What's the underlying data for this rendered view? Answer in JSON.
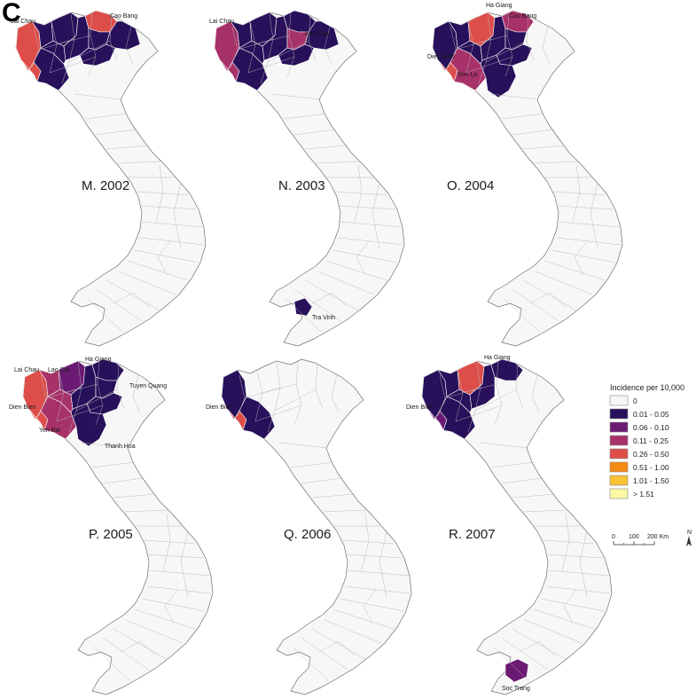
{
  "figure_letter": "C",
  "colors": {
    "c0": "#f7f7f7",
    "c1": "#28105a",
    "c2": "#6b1a73",
    "c3": "#a73269",
    "c4": "#dd4e4a",
    "c5": "#f48a16",
    "c6": "#f9c334",
    "c7": "#fbf7a4"
  },
  "legend": {
    "title": "Incidence per 10,000",
    "items": [
      {
        "label": "0",
        "color_key": "c0"
      },
      {
        "label": "0.01 - 0.05",
        "color_key": "c1"
      },
      {
        "label": "0.06 - 0.10",
        "color_key": "c2"
      },
      {
        "label": "0.11 - 0.25",
        "color_key": "c3"
      },
      {
        "label": "0.26 - 0.50",
        "color_key": "c4"
      },
      {
        "label": "0.51 - 1.00",
        "color_key": "c5"
      },
      {
        "label": "1.01 - 1.50",
        "color_key": "c6"
      },
      {
        "label": "> 1.51",
        "color_key": "c7"
      }
    ]
  },
  "scale_bar": {
    "ticks": [
      "0",
      "100",
      "200 Km"
    ],
    "north_label": "N"
  },
  "panels": [
    {
      "title": "M. 2002",
      "labels": [
        "Lai Chau",
        "Cao Bang"
      ]
    },
    {
      "title": "N. 2003",
      "labels": [
        "Lai Chau",
        "Bac Kan",
        "Tra Vinh"
      ]
    },
    {
      "title": "O. 2004",
      "labels": [
        "Ha Giang",
        "Cao Bang",
        "Dien Bien",
        "Son La"
      ]
    },
    {
      "title": "P. 2005",
      "labels": [
        "Lai Chau",
        "Lao Cai",
        "Ha Giang",
        "Tuyen Quang",
        "Dien Bien",
        "Yen Bai",
        "Thanh Hoa"
      ]
    },
    {
      "title": "Q. 2006",
      "labels": [
        "Dien Bien"
      ]
    },
    {
      "title": "R. 2007",
      "labels": [
        "Ha Giang",
        "Dien Bien",
        "Soc Trang"
      ]
    }
  ]
}
